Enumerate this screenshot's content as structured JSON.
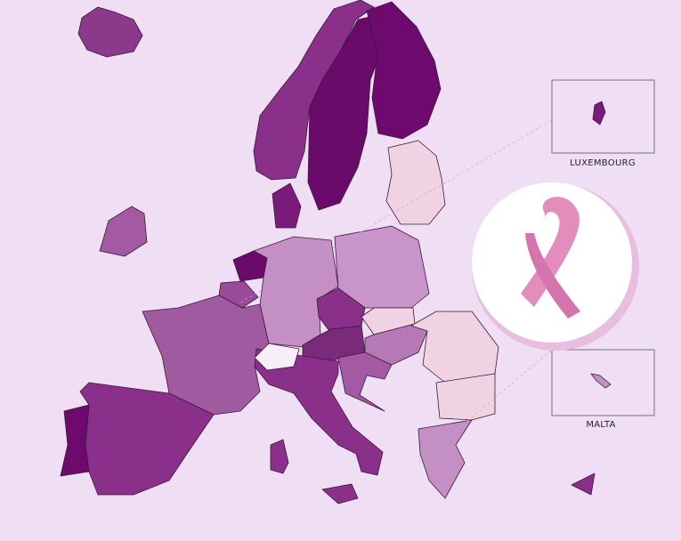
{
  "insets": [
    {
      "label": "LUXEMBOURG"
    },
    {
      "label": "MALTA"
    }
  ]
}
